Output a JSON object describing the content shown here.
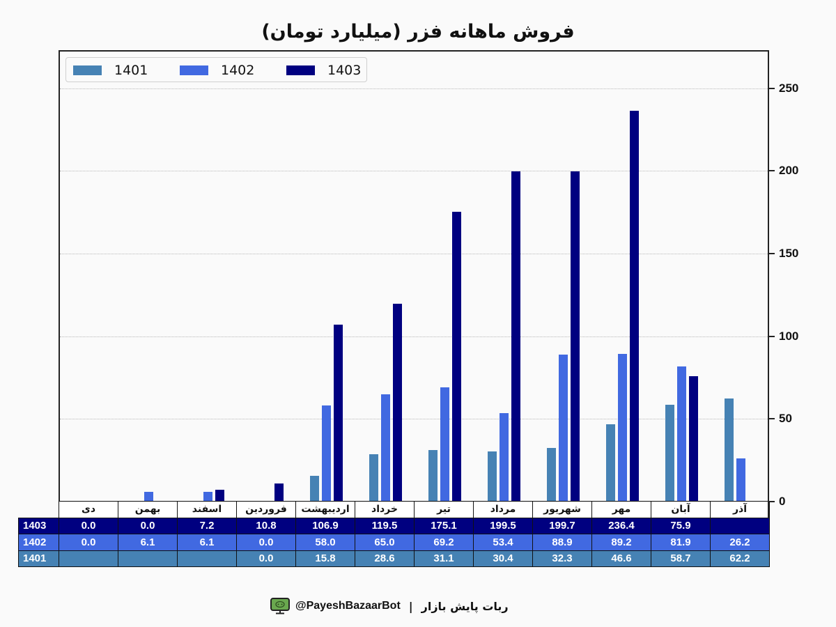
{
  "title": "فروش ماهانه فزر (میلیارد تومان)",
  "legend": [
    {
      "label": "1401",
      "color": "#4682b4"
    },
    {
      "label": "1402",
      "color": "#4169e1"
    },
    {
      "label": "1403",
      "color": "#000080"
    }
  ],
  "y_axis": {
    "ticks": [
      "0",
      "50",
      "100",
      "150",
      "200",
      "250"
    ]
  },
  "table": {
    "months": [
      "دی",
      "بهمن",
      "اسفند",
      "فروردین",
      "اردیبهشت",
      "خرداد",
      "تیر",
      "مرداد",
      "شهریور",
      "مهر",
      "آبان",
      "آذر"
    ],
    "rows": [
      {
        "label": "1403",
        "color": "#000080",
        "values": [
          "0.0",
          "0.0",
          "7.2",
          "10.8",
          "106.9",
          "119.5",
          "175.1",
          "199.5",
          "199.7",
          "236.4",
          "75.9",
          ""
        ]
      },
      {
        "label": "1402",
        "color": "#4169e1",
        "values": [
          "0.0",
          "6.1",
          "6.1",
          "0.0",
          "58.0",
          "65.0",
          "69.2",
          "53.4",
          "88.9",
          "89.2",
          "81.9",
          "26.2"
        ]
      },
      {
        "label": "1401",
        "color": "#4682b4",
        "values": [
          "",
          "",
          "",
          "0.0",
          "15.8",
          "28.6",
          "31.1",
          "30.4",
          "32.3",
          "46.6",
          "58.7",
          "62.2"
        ]
      }
    ]
  },
  "footer": {
    "handle": "@PayeshBazaarBot",
    "separator": "|",
    "bot_name": "ربات پایش بازار",
    "icon": "monitor-bot-icon"
  },
  "chart_data": {
    "type": "bar",
    "title": "فروش ماهانه فزر (میلیارد تومان)",
    "xlabel": "",
    "ylabel": "",
    "ylim": [
      0,
      273
    ],
    "y_ticks": [
      0,
      50,
      100,
      150,
      200,
      250
    ],
    "y_axis_position": "right",
    "grid": "horizontal dotted",
    "legend_position": "upper left",
    "categories": [
      "دی",
      "بهمن",
      "اسفند",
      "فروردین",
      "اردیبهشت",
      "خرداد",
      "تیر",
      "مرداد",
      "شهریور",
      "مهر",
      "آبان",
      "آذر"
    ],
    "series": [
      {
        "name": "1401",
        "color": "#4682b4",
        "values": [
          null,
          null,
          null,
          0.0,
          15.8,
          28.6,
          31.1,
          30.4,
          32.3,
          46.6,
          58.7,
          62.2
        ]
      },
      {
        "name": "1402",
        "color": "#4169e1",
        "values": [
          0.0,
          6.1,
          6.1,
          0.0,
          58.0,
          65.0,
          69.2,
          53.4,
          88.9,
          89.2,
          81.9,
          26.2
        ]
      },
      {
        "name": "1403",
        "color": "#000080",
        "values": [
          0.0,
          0.0,
          7.2,
          10.8,
          106.9,
          119.5,
          175.1,
          199.5,
          199.7,
          236.4,
          75.9,
          null
        ]
      }
    ]
  }
}
